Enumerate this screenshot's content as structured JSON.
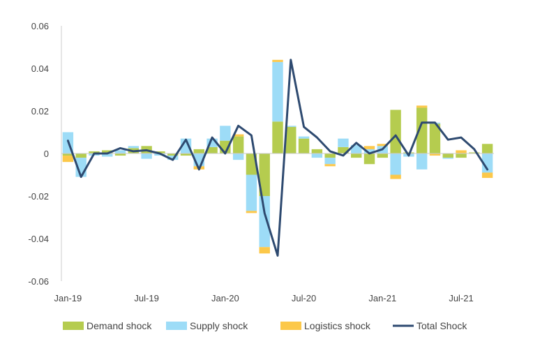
{
  "chart_data": {
    "type": "bar",
    "stacked": true,
    "x": [
      "Jan-19",
      "Feb-19",
      "Mar-19",
      "Apr-19",
      "May-19",
      "Jun-19",
      "Jul-19",
      "Aug-19",
      "Sep-19",
      "Oct-19",
      "Nov-19",
      "Dec-19",
      "Jan-20",
      "Feb-20",
      "Mar-20",
      "Apr-20",
      "May-20",
      "Jun-20",
      "Jul-20",
      "Aug-20",
      "Sep-20",
      "Oct-20",
      "Nov-20",
      "Dec-20",
      "Jan-21",
      "Feb-21",
      "Mar-21",
      "Apr-21",
      "May-21",
      "Jun-21",
      "Jul-21",
      "Aug-21",
      "Sep-21"
    ],
    "x_tick_labels": [
      "Jan-19",
      "Jul-19",
      "Jan-20",
      "Jul-20",
      "Jan-21",
      "Jul-21"
    ],
    "ylim": [
      -0.06,
      0.06
    ],
    "y_ticks": [
      0.06,
      0.04,
      0.02,
      0,
      -0.02,
      -0.04,
      -0.06
    ],
    "y_tick_labels": [
      "0.06",
      "0.04",
      "0.02",
      "0",
      "-0.02",
      "-0.04",
      "-0.06"
    ],
    "grid": false,
    "legend_position": "bottom",
    "series": [
      {
        "name": "Demand shock",
        "kind": "bar",
        "color": "#b5cc4f",
        "values": [
          -0.001,
          -0.002,
          0.001,
          0.0015,
          -0.001,
          0.0025,
          0.0035,
          0.001,
          -0.001,
          -0.001,
          0.002,
          0.003,
          0.006,
          0.008,
          -0.01,
          -0.02,
          0.015,
          0.0125,
          0.007,
          0.002,
          -0.002,
          0.003,
          -0.002,
          -0.005,
          -0.002,
          0.0205,
          0.0005,
          0.0215,
          0.014,
          -0.002,
          -0.002,
          0.0005,
          0.0045
        ]
      },
      {
        "name": "Supply shock",
        "kind": "bar",
        "color": "#9ddcf7",
        "values": [
          0.01,
          -0.009,
          -0.001,
          -0.0015,
          0.0015,
          0.001,
          -0.0025,
          -0.001,
          -0.002,
          0.007,
          -0.006,
          0.004,
          0.007,
          -0.003,
          -0.017,
          -0.024,
          0.028,
          0.0005,
          0.001,
          -0.002,
          -0.003,
          0.004,
          0.004,
          0.002,
          0.0035,
          -0.01,
          -0.0015,
          -0.0075,
          0.0005,
          -0.0005,
          0.0,
          0.0,
          -0.009
        ]
      },
      {
        "name": "Logistics shock",
        "kind": "bar",
        "color": "#fcc84a",
        "values": [
          -0.003,
          0.0,
          0.0,
          0.0,
          0.0,
          0.0,
          0.0,
          0.0,
          0.0,
          0.0,
          -0.0015,
          0.0,
          0.0,
          0.001,
          -0.001,
          -0.003,
          0.001,
          0.0,
          0.0,
          0.0,
          -0.001,
          0.0,
          0.0,
          0.0015,
          0.001,
          -0.002,
          0.0,
          0.001,
          -0.001,
          0.0,
          0.0015,
          0.0,
          -0.0025
        ]
      },
      {
        "name": "Total Shock",
        "kind": "line",
        "color": "#2e4a70",
        "values": [
          0.006,
          -0.011,
          0.0,
          0.0,
          0.0025,
          0.001,
          0.0015,
          0.0,
          -0.003,
          0.0065,
          -0.0075,
          0.0075,
          0.0,
          0.013,
          0.0085,
          -0.028,
          -0.048,
          0.044,
          0.0125,
          0.0075,
          0.001,
          -0.001,
          0.005,
          0.0,
          0.002,
          0.0085,
          -0.001,
          0.0145,
          0.0145,
          0.0065,
          0.0075,
          0.002,
          -0.0075
        ]
      }
    ]
  }
}
